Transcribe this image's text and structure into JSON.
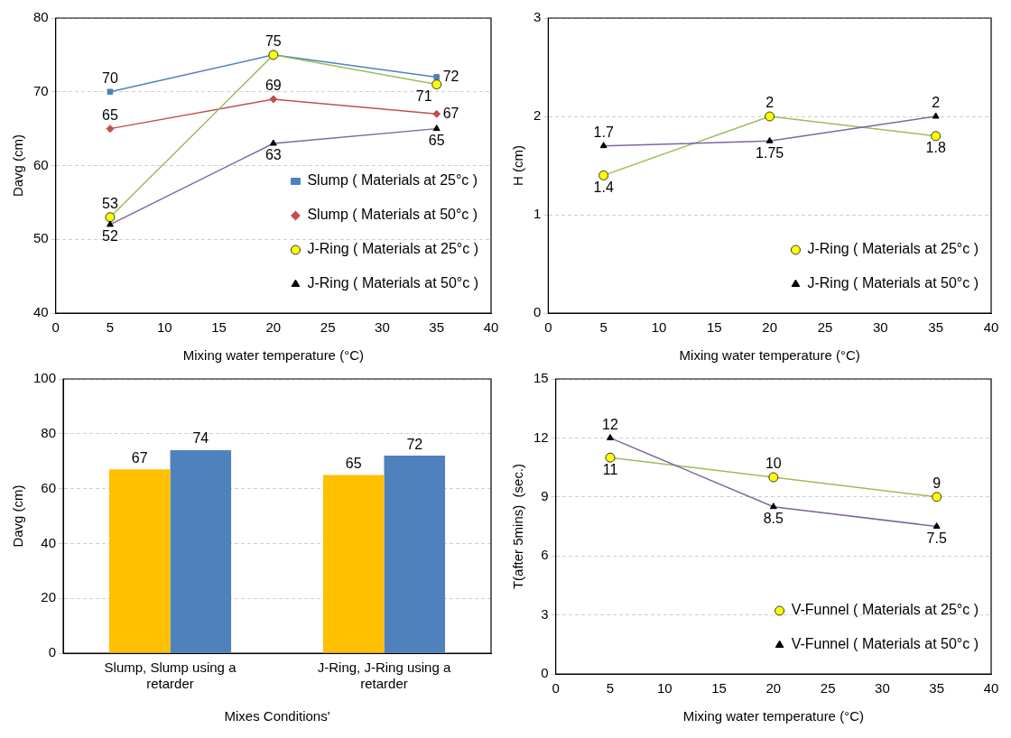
{
  "chart_data": [
    {
      "type": "line",
      "xlabel": "Mixing water temperature (°C)",
      "ylabel": "Davg (cm)",
      "x": [
        5,
        20,
        35
      ],
      "xlim": [
        0,
        40
      ],
      "xticks": [
        0,
        5,
        10,
        15,
        20,
        25,
        30,
        35,
        40
      ],
      "ylim": [
        40,
        80
      ],
      "yticks": [
        40,
        50,
        60,
        70,
        80
      ],
      "grid": "y",
      "legend": "bottom right",
      "series": [
        {
          "name": "Slump ( Materials at 25°c )",
          "color": "#4f81bd",
          "marker": "square",
          "values": [
            70,
            75,
            72
          ],
          "value_labels": [
            "70",
            "75",
            "72"
          ]
        },
        {
          "name": "Slump ( Materials at 50°c )",
          "color": "#c0504d",
          "marker": "diamond",
          "values": [
            65,
            69,
            67
          ],
          "value_labels": [
            "65",
            "69",
            "67"
          ]
        },
        {
          "name": "J-Ring ( Materials at 25°c )",
          "color": "#9bbb59",
          "marker": "circle",
          "values": [
            53,
            75,
            71
          ],
          "value_labels": [
            "53",
            null,
            "71"
          ]
        },
        {
          "name": "J-Ring ( Materials at 50°c )",
          "color": "#8064a2",
          "marker": "triangle",
          "values": [
            52,
            63,
            65
          ],
          "value_labels": [
            "52",
            "63",
            "65"
          ]
        }
      ]
    },
    {
      "type": "line",
      "xlabel": "Mixing water temperature (°C)",
      "ylabel": "H (cm)",
      "x": [
        5,
        20,
        35
      ],
      "xlim": [
        0,
        40
      ],
      "xticks": [
        0,
        5,
        10,
        15,
        20,
        25,
        30,
        35,
        40
      ],
      "ylim": [
        0,
        3
      ],
      "yticks": [
        0,
        1,
        2,
        3
      ],
      "grid": "y",
      "legend": "bottom right",
      "data_labels": true,
      "series": [
        {
          "name": "J-Ring ( Materials at 25°c )",
          "color": "#9bbb59",
          "marker": "circle",
          "values": [
            1.4,
            2,
            1.8
          ]
        },
        {
          "name": "J-Ring ( Materials at 50°c )",
          "color": "#8064a2",
          "marker": "triangle",
          "values": [
            1.7,
            1.75,
            2
          ]
        }
      ]
    },
    {
      "type": "bar",
      "xlabel": "Mixes Conditions'",
      "ylabel": "Davg (cm)",
      "categories": [
        "Slump, Slump using a retarder",
        "J-Ring, J-Ring using a retarder"
      ],
      "ylim": [
        0,
        100
      ],
      "yticks": [
        0,
        20,
        40,
        60,
        80,
        100
      ],
      "grid": "y",
      "data_labels": true,
      "series": [
        {
          "color": "#ffc000",
          "values": [
            67,
            65
          ]
        },
        {
          "color": "#4f81bd",
          "values": [
            74,
            72
          ]
        }
      ]
    },
    {
      "type": "line",
      "xlabel": "Mixing water temperature (°C)",
      "ylabel": "T(after 5mins)  (sec.)",
      "x": [
        5,
        20,
        35
      ],
      "xlim": [
        0,
        40
      ],
      "xticks": [
        0,
        5,
        10,
        15,
        20,
        25,
        30,
        35,
        40
      ],
      "ylim": [
        0,
        15
      ],
      "yticks": [
        0,
        3,
        6,
        9,
        12,
        15
      ],
      "grid": "y",
      "legend": "bottom right",
      "data_labels": true,
      "series": [
        {
          "name": "V-Funnel ( Materials at 25°c )",
          "color": "#9bbb59",
          "marker": "circle",
          "values": [
            11,
            10,
            9
          ]
        },
        {
          "name": "V-Funnel ( Materials at 50°c )",
          "color": "#8064a2",
          "marker": "triangle",
          "values": [
            12,
            8.5,
            7.5
          ]
        }
      ]
    }
  ]
}
